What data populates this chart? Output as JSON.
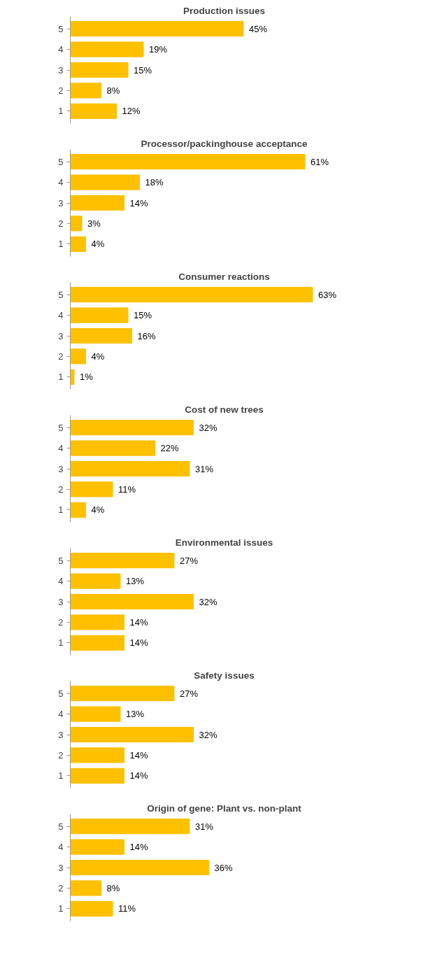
{
  "chart_data": [
    {
      "type": "bar",
      "orientation": "horizontal",
      "title": "Production issues",
      "categories": [
        "5",
        "4",
        "3",
        "2",
        "1"
      ],
      "values": [
        45,
        19,
        15,
        8,
        12
      ],
      "color": "#ffc000",
      "value_labels": [
        "45%",
        "19%",
        "15%",
        "8%",
        "12%"
      ],
      "tick_labels": "y",
      "grid": false
    },
    {
      "type": "bar",
      "orientation": "horizontal",
      "title": "Processor/packinghouse acceptance",
      "categories": [
        "5",
        "4",
        "3",
        "2",
        "1"
      ],
      "values": [
        61,
        18,
        14,
        3,
        4
      ],
      "color": "#ffc000",
      "value_labels": [
        "61%",
        "18%",
        "14%",
        "3%",
        "4%"
      ],
      "tick_labels": "y",
      "grid": false
    },
    {
      "type": "bar",
      "orientation": "horizontal",
      "title": "Consumer reactions",
      "categories": [
        "5",
        "4",
        "3",
        "2",
        "1"
      ],
      "values": [
        63,
        15,
        16,
        4,
        1
      ],
      "color": "#ffc000",
      "value_labels": [
        "63%",
        "15%",
        "16%",
        "4%",
        "1%"
      ],
      "tick_labels": "y",
      "grid": false
    },
    {
      "type": "bar",
      "orientation": "horizontal",
      "title": "Cost of new trees",
      "categories": [
        "5",
        "4",
        "3",
        "2",
        "1"
      ],
      "values": [
        32,
        22,
        31,
        11,
        4
      ],
      "color": "#ffc000",
      "value_labels": [
        "32%",
        "22%",
        "31%",
        "11%",
        "4%"
      ],
      "tick_labels": "y",
      "grid": false
    },
    {
      "type": "bar",
      "orientation": "horizontal",
      "title": "Environmental issues",
      "categories": [
        "5",
        "4",
        "3",
        "2",
        "1"
      ],
      "values": [
        27,
        13,
        32,
        14,
        14
      ],
      "color": "#ffc000",
      "value_labels": [
        "27%",
        "13%",
        "32%",
        "14%",
        "14%"
      ],
      "tick_labels": "y",
      "grid": false
    },
    {
      "type": "bar",
      "orientation": "horizontal",
      "title": "Safety issues",
      "categories": [
        "5",
        "4",
        "3",
        "2",
        "1"
      ],
      "values": [
        27,
        13,
        32,
        14,
        14
      ],
      "color": "#ffc000",
      "value_labels": [
        "27%",
        "13%",
        "32%",
        "14%",
        "14%"
      ],
      "tick_labels": "y",
      "grid": false
    },
    {
      "type": "bar",
      "orientation": "horizontal",
      "title": "Origin of gene: Plant vs. non-plant",
      "categories": [
        "5",
        "4",
        "3",
        "2",
        "1"
      ],
      "values": [
        31,
        14,
        36,
        8,
        11
      ],
      "color": "#ffc000",
      "value_labels": [
        "31%",
        "14%",
        "36%",
        "8%",
        "11%"
      ],
      "tick_labels": "y",
      "grid": false
    }
  ]
}
